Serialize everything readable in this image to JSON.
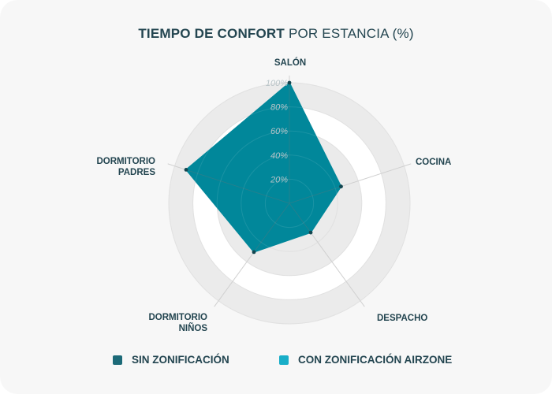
{
  "chart_data": {
    "type": "radar",
    "title_bold": "TIEMPO DE CONFORT",
    "title_light": "POR ESTANCIA (%)",
    "categories": [
      "SALÓN",
      "COCINA",
      "DESPACHO",
      "DORMITORIO NIÑOS",
      "DORMITORIO PADRES"
    ],
    "category_lines": [
      [
        "SALÓN"
      ],
      [
        "COCINA"
      ],
      [
        "DESPACHO"
      ],
      [
        "DORMITORIO",
        "NIÑOS"
      ],
      [
        "DORMITORIO",
        "PADRES"
      ]
    ],
    "rmax": 100,
    "ticks": [
      20,
      40,
      60,
      80,
      100
    ],
    "tick_labels": [
      "20%",
      "40%",
      "60%",
      "80%",
      "100%"
    ],
    "series": [
      {
        "name": "SIN ZONIFICACIÓN",
        "color": "#1c6a78",
        "values": [
          100,
          45,
          30,
          50,
          90
        ]
      },
      {
        "name": "CON ZONIFICACIÓN AIRZONE",
        "color": "#19aec8",
        "values": [
          100,
          45,
          30,
          50,
          90
        ]
      }
    ],
    "fill_color": "#01879a",
    "legend_position": "bottom"
  }
}
